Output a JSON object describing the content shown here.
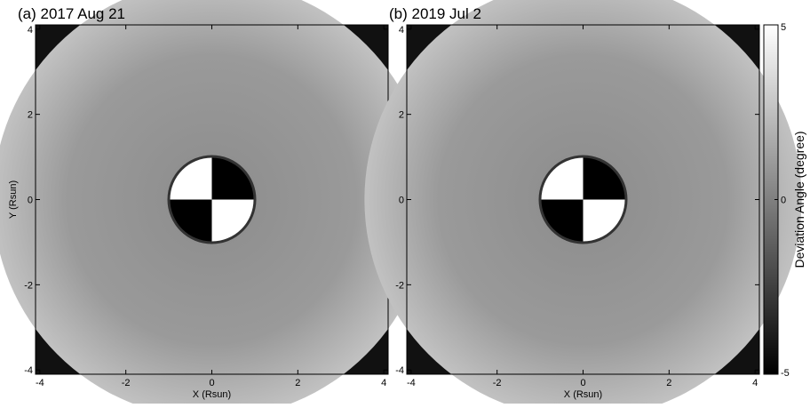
{
  "chart_data": [
    {
      "type": "heatmap",
      "title": "(a) 2017 Aug 21",
      "xlabel": "X (Rsun)",
      "ylabel": "Y (Rsun)",
      "xlim": [
        -4.1,
        4.1
      ],
      "ylim": [
        -4.1,
        4.1
      ],
      "xticks": [
        -4,
        -2,
        0,
        2,
        4
      ],
      "yticks": [
        -4,
        -2,
        0,
        2,
        4
      ]
    },
    {
      "type": "heatmap",
      "title": "(b) 2019 Jul 2",
      "xlabel": "X (Rsun)",
      "xlim": [
        -4.1,
        4.1
      ],
      "ylim": [
        -4.1,
        4.1
      ],
      "xticks": [
        -4,
        -2,
        0,
        2,
        4
      ],
      "yticks": [
        -4,
        -2,
        0,
        2,
        4
      ],
      "colorbar": {
        "label": "Deviation Angle (degree)",
        "lim": [
          -5,
          5
        ],
        "ticks": [
          -5,
          0,
          5
        ]
      }
    }
  ]
}
